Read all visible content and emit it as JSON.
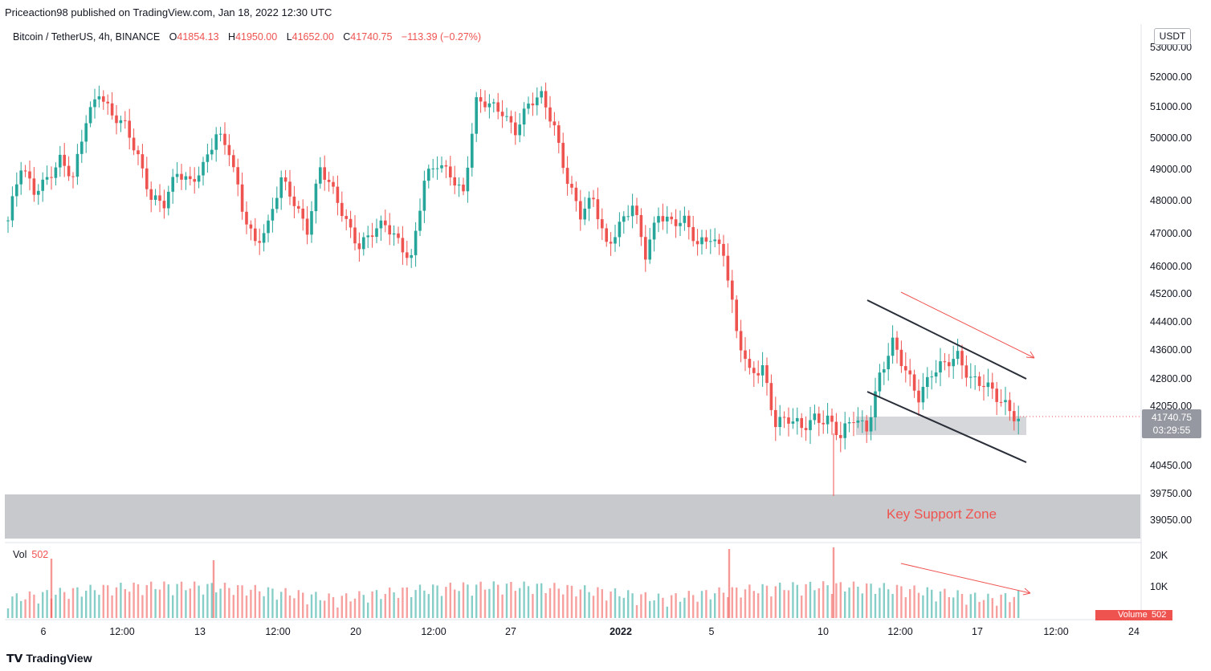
{
  "header": {
    "publisher_text": "Priceaction98 published on TradingView.com, Jan 18, 2022 12:30 UTC"
  },
  "legend": {
    "symbol": "Bitcoin / TetherUS, 4h, BINANCE",
    "open_label": "O",
    "open_value": "41854.13",
    "high_label": "H",
    "high_value": "41950.00",
    "low_label": "L",
    "low_value": "41652.00",
    "close_label": "C",
    "close_value": "41740.75",
    "change": "−113.39 (−0.27%)"
  },
  "volume_legend": {
    "label": "Vol",
    "value": "502"
  },
  "currency_button": "USDT",
  "price_badge": {
    "price": "41740.75",
    "countdown": "03:29:55"
  },
  "volume_badge": {
    "label": "Volume",
    "value": "502"
  },
  "annotation": {
    "support_zone_label": "Key Support Zone"
  },
  "footer": {
    "brand": "TradingView"
  },
  "colors": {
    "up": "#26a69a",
    "down": "#ef5350",
    "zone": "#c8c9cc",
    "channel": "#2a2e39"
  },
  "chart_data": {
    "type": "candlestick",
    "price_ticks": [
      "53000.00",
      "52000.00",
      "51000.00",
      "50000.00",
      "49000.00",
      "48000.00",
      "47000.00",
      "46000.00",
      "45200.00",
      "44400.00",
      "43600.00",
      "42800.00",
      "42050.00",
      "41250.00",
      "40450.00",
      "39750.00",
      "39050.00"
    ],
    "volume_ticks": [
      "20K",
      "10K"
    ],
    "time_ticks": [
      {
        "label": "6",
        "bold": false
      },
      {
        "label": "12:00",
        "bold": false
      },
      {
        "label": "13",
        "bold": false
      },
      {
        "label": "12:00",
        "bold": false
      },
      {
        "label": "20",
        "bold": false
      },
      {
        "label": "12:00",
        "bold": false
      },
      {
        "label": "27",
        "bold": false
      },
      {
        "label": "2022",
        "bold": true
      },
      {
        "label": "5",
        "bold": false
      },
      {
        "label": "10",
        "bold": false
      },
      {
        "label": "12:00",
        "bold": false
      },
      {
        "label": "17",
        "bold": false
      },
      {
        "label": "12:00",
        "bold": false
      },
      {
        "label": "24",
        "bold": false
      }
    ],
    "price_path": [
      [
        0,
        47400
      ],
      [
        3,
        49000
      ],
      [
        6,
        48300
      ],
      [
        9,
        48800
      ],
      [
        12,
        49300
      ],
      [
        15,
        48600
      ],
      [
        18,
        50600
      ],
      [
        21,
        51600
      ],
      [
        24,
        50700
      ],
      [
        27,
        50300
      ],
      [
        30,
        49400
      ],
      [
        33,
        48200
      ],
      [
        36,
        47900
      ],
      [
        39,
        48800
      ],
      [
        42,
        48600
      ],
      [
        45,
        49200
      ],
      [
        48,
        50100
      ],
      [
        51,
        49500
      ],
      [
        54,
        47800
      ],
      [
        57,
        46800
      ],
      [
        60,
        47200
      ],
      [
        63,
        48600
      ],
      [
        66,
        48000
      ],
      [
        69,
        47200
      ],
      [
        72,
        49000
      ],
      [
        75,
        48200
      ],
      [
        78,
        47400
      ],
      [
        81,
        46700
      ],
      [
        84,
        47000
      ],
      [
        87,
        47200
      ],
      [
        90,
        46800
      ],
      [
        93,
        46300
      ],
      [
        96,
        48600
      ],
      [
        99,
        49100
      ],
      [
        102,
        48900
      ],
      [
        105,
        48300
      ],
      [
        108,
        51100
      ],
      [
        111,
        51000
      ],
      [
        114,
        50900
      ],
      [
        117,
        50300
      ],
      [
        120,
        51000
      ],
      [
        123,
        51300
      ],
      [
        126,
        50400
      ],
      [
        129,
        48700
      ],
      [
        132,
        47500
      ],
      [
        135,
        48000
      ],
      [
        138,
        46700
      ],
      [
        141,
        47300
      ],
      [
        144,
        47800
      ],
      [
        147,
        46300
      ],
      [
        150,
        47700
      ],
      [
        153,
        47400
      ],
      [
        156,
        47300
      ],
      [
        159,
        46600
      ],
      [
        162,
        47000
      ],
      [
        165,
        46500
      ],
      [
        168,
        44000
      ],
      [
        171,
        42900
      ],
      [
        174,
        43200
      ],
      [
        177,
        41600
      ],
      [
        180,
        41600
      ],
      [
        183,
        41400
      ],
      [
        186,
        41800
      ],
      [
        189,
        41700
      ],
      [
        192,
        41100
      ],
      [
        195,
        41700
      ],
      [
        198,
        41500
      ],
      [
        201,
        42900
      ],
      [
        204,
        43700
      ],
      [
        207,
        43000
      ],
      [
        210,
        42400
      ],
      [
        213,
        43000
      ],
      [
        216,
        43100
      ],
      [
        219,
        43400
      ],
      [
        222,
        42900
      ],
      [
        225,
        42700
      ],
      [
        228,
        42200
      ],
      [
        231,
        41900
      ],
      [
        233,
        41740
      ]
    ]
  }
}
